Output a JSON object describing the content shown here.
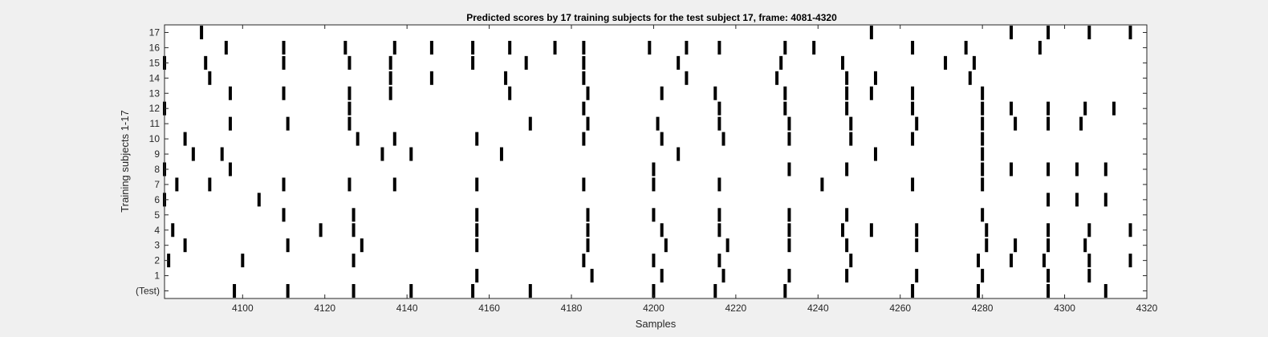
{
  "chart_data": {
    "type": "raster",
    "title": "Predicted scores by 17 training subjects for the test subject 17, frame: 4081-4320",
    "xlabel": "Samples",
    "ylabel": "Training subjects 1-17",
    "xlim": [
      4081,
      4320
    ],
    "x_ticks": [
      4100,
      4120,
      4140,
      4160,
      4180,
      4200,
      4220,
      4240,
      4260,
      4280,
      4300,
      4320
    ],
    "rows": [
      "(Test)",
      "1",
      "2",
      "3",
      "4",
      "5",
      "6",
      "7",
      "8",
      "9",
      "10",
      "11",
      "12",
      "13",
      "14",
      "15",
      "16",
      "17"
    ],
    "grid": false,
    "colors": {
      "figure_bg": "#f0f0f0",
      "axes_bg": "#ffffff",
      "mark": "#000000",
      "axis": "#262626"
    },
    "events": {
      "(Test)": [
        4098,
        4111,
        4127,
        4141,
        4156,
        4170,
        4200,
        4215,
        4232,
        4263,
        4279,
        4296,
        4310
      ],
      "1": [
        4157,
        4185,
        4202,
        4217,
        4233,
        4247,
        4264,
        4280,
        4296,
        4306
      ],
      "2": [
        4082,
        4100,
        4127,
        4183,
        4200,
        4216,
        4248,
        4279,
        4287,
        4295,
        4306,
        4316
      ],
      "3": [
        4086,
        4111,
        4129,
        4157,
        4184,
        4203,
        4218,
        4233,
        4247,
        4264,
        4281,
        4288,
        4296,
        4305
      ],
      "4": [
        4083,
        4119,
        4127,
        4157,
        4184,
        4202,
        4216,
        4233,
        4246,
        4253,
        4264,
        4281,
        4296,
        4306,
        4316
      ],
      "5": [
        4110,
        4127,
        4157,
        4184,
        4200,
        4216,
        4233,
        4247,
        4280
      ],
      "6": [
        4081,
        4104,
        4296,
        4303,
        4310
      ],
      "7": [
        4084,
        4092,
        4110,
        4126,
        4137,
        4157,
        4183,
        4200,
        4216,
        4241,
        4263,
        4280
      ],
      "8": [
        4081,
        4097,
        4200,
        4233,
        4247,
        4280,
        4287,
        4296,
        4303,
        4310
      ],
      "9": [
        4088,
        4095,
        4134,
        4141,
        4163,
        4206,
        4254,
        4280
      ],
      "10": [
        4086,
        4128,
        4137,
        4157,
        4183,
        4202,
        4217,
        4233,
        4248,
        4263,
        4280
      ],
      "11": [
        4097,
        4111,
        4126,
        4170,
        4184,
        4201,
        4216,
        4233,
        4248,
        4264,
        4280,
        4288,
        4296,
        4304
      ],
      "12": [
        4081,
        4126,
        4183,
        4216,
        4232,
        4247,
        4263,
        4280,
        4287,
        4296,
        4305,
        4312
      ],
      "13": [
        4097,
        4110,
        4126,
        4136,
        4165,
        4184,
        4202,
        4215,
        4232,
        4247,
        4253,
        4263,
        4280
      ],
      "14": [
        4092,
        4136,
        4146,
        4164,
        4183,
        4208,
        4230,
        4247,
        4254,
        4277
      ],
      "15": [
        4081,
        4091,
        4110,
        4126,
        4136,
        4156,
        4169,
        4183,
        4206,
        4231,
        4246,
        4271,
        4278
      ],
      "16": [
        4096,
        4110,
        4125,
        4137,
        4146,
        4156,
        4165,
        4176,
        4183,
        4199,
        4208,
        4216,
        4232,
        4239,
        4263,
        4276,
        4294
      ],
      "17": [
        4090,
        4253,
        4287,
        4296,
        4306,
        4316
      ]
    }
  }
}
